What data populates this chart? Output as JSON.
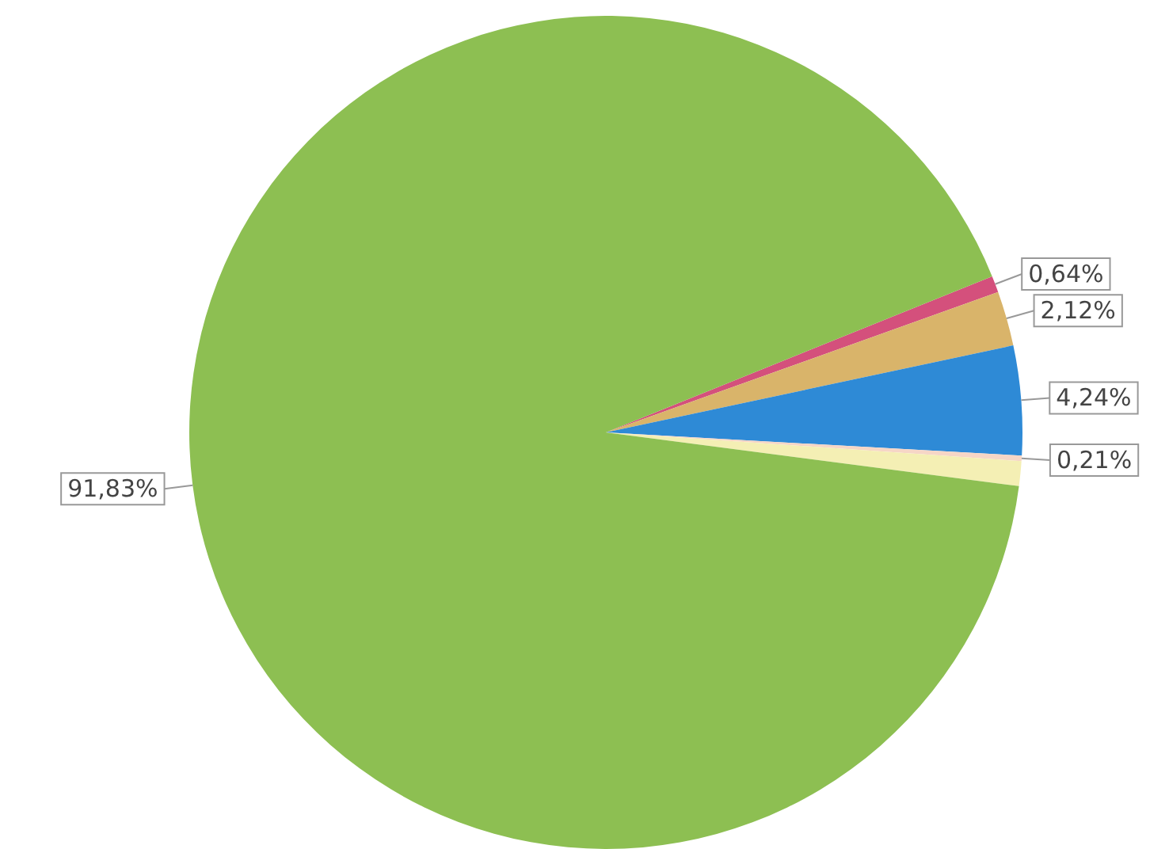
{
  "chart_data": {
    "type": "pie",
    "categories": [
      null,
      null,
      null,
      null,
      null,
      null
    ],
    "values": [
      0.64,
      2.12,
      4.24,
      0.21,
      0.96,
      91.83
    ],
    "colors": [
      "#d4507c",
      "#d9b46a",
      "#2e8ad6",
      "#f6d6c6",
      "#f4efb4",
      "#8dbf52"
    ],
    "value_labels": [
      "0,64%",
      "2,12%",
      "4,24%",
      "0,21%",
      null,
      "91,83%"
    ]
  }
}
